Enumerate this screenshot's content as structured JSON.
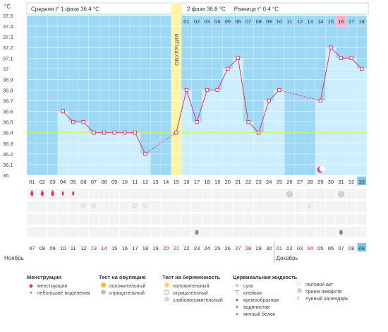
{
  "header": {
    "phase1_label": "Средняя t° 1 фаза",
    "phase1_value": "36.4 °С",
    "phase2_label": "2 фаза",
    "phase2_value": "36.8 °С",
    "diff_label": "Разница t°",
    "diff_value": "0.4 °С",
    "unit": "°С"
  },
  "chart_data": {
    "type": "line",
    "ylim": [
      36,
      37.5
    ],
    "yticks": [
      "36",
      "36.1",
      "36.2",
      "36.3",
      "36.4",
      "36.5",
      "36.6",
      "36.7",
      "36.8",
      "36.9",
      "37",
      "37.1",
      "37.2",
      "37.3",
      "37.4",
      "37.5"
    ],
    "cover_line": 36.4,
    "ovulation_label": "ОВУЛЯЦИЯ",
    "ovulation_day": 15,
    "highlight_day": 31,
    "cycle_days": [
      "01",
      "02",
      "03",
      "04",
      "05",
      "06",
      "07",
      "08",
      "09",
      "10",
      "11",
      "12",
      "13",
      "14",
      "15",
      "16",
      "17",
      "18",
      "19",
      "20",
      "21",
      "22",
      "23",
      "24",
      "25",
      "26",
      "27",
      "28",
      "29",
      "30",
      "31",
      "32",
      "33"
    ],
    "phase2_days": [
      "01",
      "02",
      "03",
      "04",
      "05",
      "06",
      "07",
      "08",
      "09",
      "10",
      "11",
      "12",
      "13",
      "14",
      "15",
      "16",
      "17",
      "18"
    ],
    "dates": [
      "07",
      "08",
      "09",
      "10",
      "11",
      "12",
      "13",
      "14",
      "15",
      "16",
      "17",
      "18",
      "19",
      "20",
      "21",
      "22",
      "23",
      "24",
      "25",
      "26",
      "27",
      "28",
      "29",
      "30",
      "01",
      "02",
      "03",
      "04",
      "05",
      "06",
      "07",
      "08",
      "09"
    ],
    "red_dates": [
      6,
      7,
      13,
      14,
      20,
      21,
      26,
      27
    ],
    "month_start": "Ноябрь",
    "month_next": "Декабрь",
    "temps": [
      null,
      null,
      null,
      36.6,
      36.5,
      36.5,
      36.4,
      36.4,
      36.4,
      36.4,
      36.4,
      36.2,
      null,
      null,
      36.4,
      36.8,
      36.5,
      36.8,
      36.8,
      37.0,
      37.1,
      36.5,
      36.4,
      36.7,
      36.8,
      null,
      null,
      null,
      36.7,
      37.2,
      37.1,
      37.1,
      37.0
    ],
    "dashed_segments": [
      [
        12,
        15
      ],
      [
        25,
        29
      ]
    ],
    "menstruation_days": [
      1,
      2,
      3
    ],
    "spotting_days": [
      4,
      5
    ],
    "intercourse_days": [
      6,
      7,
      11,
      12,
      28
    ],
    "medication_days": [
      26,
      31
    ],
    "lunar_day": 29,
    "drop_days": [
      17,
      31
    ]
  },
  "legend": {
    "menstruation": {
      "title": "Менструация",
      "items": [
        "менструация",
        "небольшие выделения"
      ]
    },
    "ovulation_test": {
      "title": "Тест на овуляцию",
      "items": [
        "положительный",
        "отрицательный"
      ]
    },
    "pregnancy_test": {
      "title": "Тест на беременность",
      "items": [
        "положительный",
        "отрицательный",
        "слабоположительный"
      ]
    },
    "cervical": {
      "title": "Цервикальная жидкость",
      "items": [
        "сухо",
        "клейкая",
        "кремообразная",
        "водянистая",
        "яичный белок"
      ]
    },
    "other": {
      "items": [
        "половой акт",
        "прием лекарств",
        "лунный календарь"
      ]
    }
  },
  "colors": {
    "bg_blue": "#9dd9f5",
    "bar_fill": "#cdeefc",
    "line": "#e0336e",
    "ovulation": "#fff3a8",
    "cover": "#d6ec7a",
    "highlight": "#f7b2c6",
    "accent_blue": "#7cc7ea"
  }
}
